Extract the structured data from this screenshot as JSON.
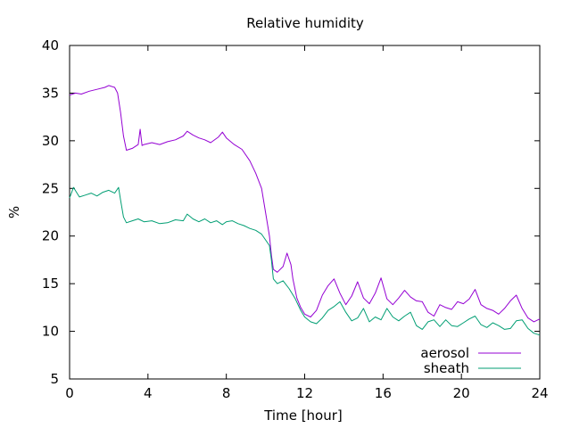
{
  "chart_data": {
    "type": "line",
    "title": "Relative humidity",
    "xlabel": "Time [hour]",
    "ylabel": "%",
    "xlim": [
      0,
      24
    ],
    "ylim": [
      5,
      40
    ],
    "xticks": [
      "0",
      "4",
      "8",
      "12",
      "16",
      "20",
      "24"
    ],
    "yticks": [
      "5",
      "10",
      "15",
      "20",
      "25",
      "30",
      "35",
      "40"
    ],
    "grid": false,
    "legend_position": "bottom-right",
    "series": [
      {
        "name": "aerosol",
        "color": "#9400d3",
        "x": [
          0,
          0.3,
          0.6,
          1,
          1.4,
          1.8,
          2,
          2.3,
          2.45,
          2.6,
          2.75,
          2.9,
          3.2,
          3.5,
          3.6,
          3.7,
          3.8,
          4.2,
          4.6,
          5,
          5.4,
          5.8,
          6,
          6.3,
          6.6,
          6.9,
          7.2,
          7.6,
          7.8,
          8,
          8.4,
          8.8,
          9.2,
          9.5,
          9.8,
          10,
          10.2,
          10.3,
          10.4,
          10.6,
          10.9,
          11.1,
          11.3,
          11.4,
          11.5,
          11.6,
          11.8,
          12,
          12.3,
          12.6,
          12.9,
          13.2,
          13.5,
          13.8,
          14.1,
          14.4,
          14.7,
          15,
          15.3,
          15.6,
          15.9,
          16.2,
          16.5,
          16.8,
          17.1,
          17.4,
          17.7,
          18,
          18.3,
          18.6,
          18.9,
          19.2,
          19.5,
          19.8,
          20.1,
          20.4,
          20.7,
          21,
          21.3,
          21.6,
          21.9,
          22.2,
          22.5,
          22.8,
          23.1,
          23.4,
          23.7,
          24
        ],
        "y": [
          34.8,
          35,
          34.9,
          35.2,
          35.4,
          35.6,
          35.8,
          35.6,
          35,
          33,
          30.5,
          29,
          29.2,
          29.6,
          31.2,
          29.5,
          29.6,
          29.8,
          29.6,
          29.9,
          30.1,
          30.5,
          31,
          30.6,
          30.3,
          30.1,
          29.8,
          30.4,
          30.9,
          30.3,
          29.6,
          29.1,
          27.9,
          26.6,
          25,
          22.5,
          20,
          18,
          16.5,
          16.2,
          16.8,
          18.2,
          17,
          15.5,
          14.5,
          13.5,
          12.5,
          11.8,
          11.5,
          12.2,
          13.8,
          14.8,
          15.5,
          14,
          12.8,
          13.7,
          15.2,
          13.5,
          12.9,
          14,
          15.6,
          13.4,
          12.8,
          13.5,
          14.3,
          13.6,
          13.2,
          13.1,
          12,
          11.6,
          12.8,
          12.5,
          12.3,
          13.1,
          12.9,
          13.4,
          14.4,
          12.8,
          12.4,
          12.2,
          11.8,
          12.4,
          13.2,
          13.8,
          12.4,
          11.4,
          11,
          11.3
        ]
      },
      {
        "name": "sheath",
        "color": "#009e73",
        "x": [
          0,
          0.2,
          0.5,
          0.8,
          1.1,
          1.4,
          1.7,
          2,
          2.3,
          2.5,
          2.6,
          2.75,
          2.9,
          3.2,
          3.5,
          3.8,
          4.2,
          4.6,
          5,
          5.4,
          5.8,
          6,
          6.3,
          6.6,
          6.9,
          7.2,
          7.5,
          7.8,
          8,
          8.3,
          8.6,
          8.9,
          9.2,
          9.5,
          9.8,
          10,
          10.2,
          10.3,
          10.4,
          10.6,
          10.9,
          11.2,
          11.5,
          11.8,
          12,
          12.3,
          12.6,
          12.9,
          13.2,
          13.5,
          13.8,
          14.1,
          14.4,
          14.7,
          15,
          15.3,
          15.6,
          15.9,
          16.2,
          16.5,
          16.8,
          17.1,
          17.4,
          17.7,
          18,
          18.3,
          18.6,
          18.9,
          19.2,
          19.5,
          19.8,
          20.1,
          20.4,
          20.7,
          21,
          21.3,
          21.6,
          21.9,
          22.2,
          22.5,
          22.8,
          23.1,
          23.4,
          23.7,
          24
        ],
        "y": [
          24,
          25.1,
          24.1,
          24.3,
          24.5,
          24.2,
          24.6,
          24.8,
          24.5,
          25.1,
          23.8,
          22,
          21.4,
          21.6,
          21.8,
          21.5,
          21.6,
          21.3,
          21.4,
          21.7,
          21.6,
          22.3,
          21.8,
          21.5,
          21.8,
          21.4,
          21.6,
          21.2,
          21.5,
          21.6,
          21.3,
          21.1,
          20.8,
          20.6,
          20.2,
          19.6,
          19,
          17.5,
          15.5,
          15,
          15.3,
          14.5,
          13.5,
          12.2,
          11.5,
          11,
          10.8,
          11.4,
          12.2,
          12.6,
          13.1,
          12,
          11.1,
          11.4,
          12.4,
          11,
          11.5,
          11.2,
          12.4,
          11.5,
          11.1,
          11.6,
          12,
          10.6,
          10.2,
          11,
          11.2,
          10.5,
          11.2,
          10.6,
          10.5,
          10.9,
          11.3,
          11.6,
          10.7,
          10.4,
          10.9,
          10.6,
          10.2,
          10.3,
          11.1,
          11.2,
          10.3,
          9.8,
          9.6
        ]
      }
    ]
  }
}
